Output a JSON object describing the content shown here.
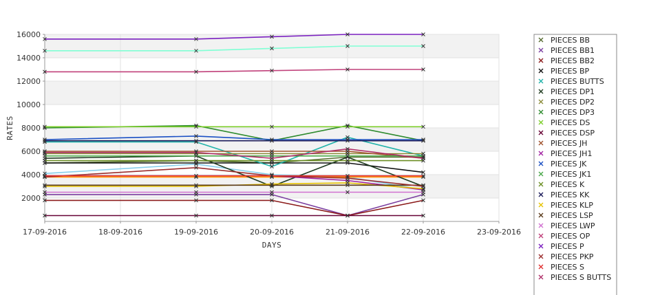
{
  "chart_data": {
    "type": "line",
    "title": "",
    "xlabel": "DAYS",
    "ylabel": "RATES",
    "x_ticks": [
      "17-09-2016",
      "18-09-2016",
      "19-09-2016",
      "20-09-2016",
      "21-09-2016",
      "22-09-2016",
      "23-09-2016"
    ],
    "x": [
      "17-09-2016",
      "19-09-2016",
      "20-09-2016",
      "21-09-2016",
      "22-09-2016"
    ],
    "y_ticks": [
      2000,
      4000,
      6000,
      8000,
      10000,
      12000,
      14000,
      16000
    ],
    "ylim": [
      0,
      16000
    ],
    "grid": true,
    "legend_position": "right",
    "series": [
      {
        "name": "PIECES BB",
        "color": "#556b2f",
        "values": [
          5000,
          5200,
          5000,
          5500,
          5500
        ]
      },
      {
        "name": "PIECES BB1",
        "color": "#7b3fa0",
        "values": [
          2300,
          2300,
          2300,
          500,
          2300
        ]
      },
      {
        "name": "PIECES BB2",
        "color": "#8b1a1a",
        "values": [
          1800,
          1800,
          1800,
          500,
          1800
        ]
      },
      {
        "name": "PIECES BP",
        "color": "#111111",
        "values": [
          5000,
          5000,
          5000,
          5000,
          4200
        ]
      },
      {
        "name": "PIECES BUTTS",
        "color": "#20b2aa",
        "values": [
          6800,
          6800,
          4700,
          7200,
          5600
        ]
      },
      {
        "name": "PIECES DP1",
        "color": "#1f3a1f",
        "values": [
          5400,
          5600,
          3000,
          5500,
          3000
        ]
      },
      {
        "name": "PIECES DP2",
        "color": "#8b8b3a",
        "values": [
          5800,
          5800,
          5800,
          5800,
          5800
        ]
      },
      {
        "name": "PIECES DP3",
        "color": "#2e8b2e",
        "values": [
          8000,
          8200,
          6900,
          8200,
          6900
        ]
      },
      {
        "name": "PIECES DS",
        "color": "#7ccd2a",
        "values": [
          8100,
          8100,
          8100,
          8100,
          8100
        ]
      },
      {
        "name": "PIECES DSP",
        "color": "#660033",
        "values": [
          500,
          500,
          500,
          500,
          500
        ]
      },
      {
        "name": "PIECES JH",
        "color": "#a0522d",
        "values": [
          6000,
          6000,
          6000,
          6000,
          5400
        ]
      },
      {
        "name": "PIECES JH1",
        "color": "#a020a0",
        "values": [
          3900,
          3900,
          3900,
          3500,
          2700
        ]
      },
      {
        "name": "PIECES JK",
        "color": "#1a4fc4",
        "values": [
          7000,
          7300,
          7000,
          7000,
          7000
        ]
      },
      {
        "name": "PIECES JK1",
        "color": "#4aa84a",
        "values": [
          5600,
          5600,
          5600,
          5600,
          5600
        ]
      },
      {
        "name": "PIECES K",
        "color": "#6b8e23",
        "values": [
          5200,
          5200,
          5200,
          5200,
          5200
        ]
      },
      {
        "name": "PIECES KK",
        "color": "#1a1a5a",
        "values": [
          6900,
          6900,
          6900,
          6900,
          6900
        ]
      },
      {
        "name": "PIECES KLP",
        "color": "#e6c200",
        "values": [
          3000,
          3000,
          3200,
          3300,
          2800
        ]
      },
      {
        "name": "PIECES LSP",
        "color": "#5a3a1a",
        "values": [
          3100,
          3100,
          3100,
          3100,
          3100
        ]
      },
      {
        "name": "PIECES LWP",
        "color": "#d070d0",
        "values": [
          2500,
          2500,
          2500,
          2500,
          2500
        ]
      },
      {
        "name": "PIECES OP",
        "color": "#c0407a",
        "values": [
          12800,
          12800,
          12900,
          13000,
          13000
        ]
      },
      {
        "name": "PIECES P",
        "color": "#7a1fc0",
        "values": [
          15600,
          15600,
          15800,
          16000,
          16000
        ]
      },
      {
        "name": "PIECES PKP",
        "color": "#9b2d2d",
        "values": [
          3800,
          4600,
          3900,
          3700,
          3000
        ]
      },
      {
        "name": "PIECES S",
        "color": "#e03030",
        "values": [
          3900,
          3900,
          3900,
          3900,
          3900
        ]
      },
      {
        "name": "PIECES S BUTTS",
        "color": "#b0306a",
        "values": [
          5900,
          5900,
          5400,
          6200,
          5400
        ]
      }
    ],
    "hidden_series": [
      {
        "color": "#7fffd4",
        "values": [
          14600,
          14600,
          14800,
          15000,
          15000
        ]
      },
      {
        "color": "#87ceeb",
        "values": [
          4100,
          4900,
          4000,
          3800,
          2700
        ]
      },
      {
        "color": "#ff8c00",
        "values": [
          3800,
          3800,
          3800,
          3800,
          3800
        ]
      }
    ]
  }
}
